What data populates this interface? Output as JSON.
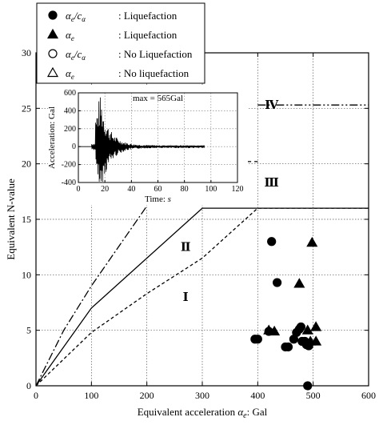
{
  "chart_data": {
    "type": "scatter",
    "xlabel_prefix": "Equivalent acceleration",
    "xlabel_symbol": "α",
    "xlabel_sub": "e",
    "xlabel_unit": ": Gal",
    "ylabel": "Equivalent N-value",
    "xlim": [
      0,
      600
    ],
    "ylim": [
      0,
      30
    ],
    "x_ticks": [
      0,
      100,
      200,
      300,
      400,
      500,
      600
    ],
    "y_ticks": [
      0,
      5,
      10,
      15,
      20,
      25,
      30
    ],
    "grid": "dotted",
    "legend_position": "top-left",
    "legend": [
      {
        "marker": "filled-circle",
        "symbol": "α",
        "sub": "e",
        "slash": "/",
        "symbol2": "c",
        "sub2": "α",
        "text": ": Liquefaction"
      },
      {
        "marker": "filled-triangle",
        "symbol": "α",
        "sub": "e",
        "text": ": Liquefaction"
      },
      {
        "marker": "open-circle",
        "symbol": "α",
        "sub": "e",
        "slash": "/",
        "symbol2": "c",
        "sub2": "α",
        "text": ": No Liquefaction"
      },
      {
        "marker": "open-triangle",
        "symbol": "α",
        "sub": "e",
        "text": ": No liquefaction"
      }
    ],
    "region_labels": [
      {
        "text": "Ⅰ",
        "x": 270,
        "y": 8
      },
      {
        "text": "Ⅱ",
        "x": 270,
        "y": 12.5
      },
      {
        "text": "Ⅲ",
        "x": 425,
        "y": 18.3
      },
      {
        "text": "Ⅳ",
        "x": 425,
        "y": 25.3
      }
    ],
    "series": [
      {
        "marker": "filled-circle",
        "points": [
          [
            395,
            4.2
          ],
          [
            400,
            4.2
          ],
          [
            420,
            4.9
          ],
          [
            425,
            13.0
          ],
          [
            435,
            9.3
          ],
          [
            450,
            3.5
          ],
          [
            455,
            3.5
          ],
          [
            465,
            4.2
          ],
          [
            470,
            4.8
          ],
          [
            475,
            5.1
          ],
          [
            478,
            5.3
          ],
          [
            480,
            4.0
          ],
          [
            485,
            4.0
          ],
          [
            488,
            3.7
          ],
          [
            490,
            0.0
          ],
          [
            492,
            3.6
          ]
        ]
      },
      {
        "marker": "filled-triangle",
        "points": [
          [
            420,
            5.0
          ],
          [
            430,
            4.9
          ],
          [
            475,
            9.2
          ],
          [
            490,
            5.0
          ],
          [
            495,
            4.0
          ],
          [
            498,
            12.9
          ],
          [
            505,
            5.3
          ],
          [
            505,
            4.0
          ]
        ]
      }
    ],
    "lines": [
      {
        "style": "solid",
        "points": [
          [
            0,
            0
          ],
          [
            100,
            7
          ],
          [
            300,
            16
          ],
          [
            600,
            16
          ]
        ]
      },
      {
        "style": "dashed",
        "points": [
          [
            0,
            0
          ],
          [
            100,
            4.8
          ],
          [
            200,
            8.3
          ],
          [
            300,
            11.5
          ],
          [
            400,
            16
          ],
          [
            600,
            16
          ]
        ]
      },
      {
        "style": "dashdot",
        "points": [
          [
            0,
            0
          ],
          [
            50,
            5
          ],
          [
            100,
            9
          ],
          [
            200,
            16.2
          ]
        ]
      },
      {
        "style": "dash-dot-dot",
        "points": [
          [
            400,
            25.3
          ],
          [
            600,
            25.3
          ]
        ]
      },
      {
        "style": "long-dash",
        "points": [
          [
            140,
            20.2
          ],
          [
            400,
            20.2
          ]
        ]
      }
    ],
    "inset": {
      "type": "line",
      "xlabel_prefix": "Time:",
      "xlabel_italic": "s",
      "ylabel": "Acceleration: Gal",
      "xlim": [
        0,
        120
      ],
      "ylim": [
        -400,
        600
      ],
      "x_ticks": [
        0,
        20,
        40,
        60,
        80,
        100,
        120
      ],
      "y_ticks": [
        -400,
        -200,
        0,
        200,
        400,
        600
      ],
      "annotation": "max = 565Gal",
      "peak": 565,
      "record_start": 10,
      "record_end": 95
    }
  }
}
